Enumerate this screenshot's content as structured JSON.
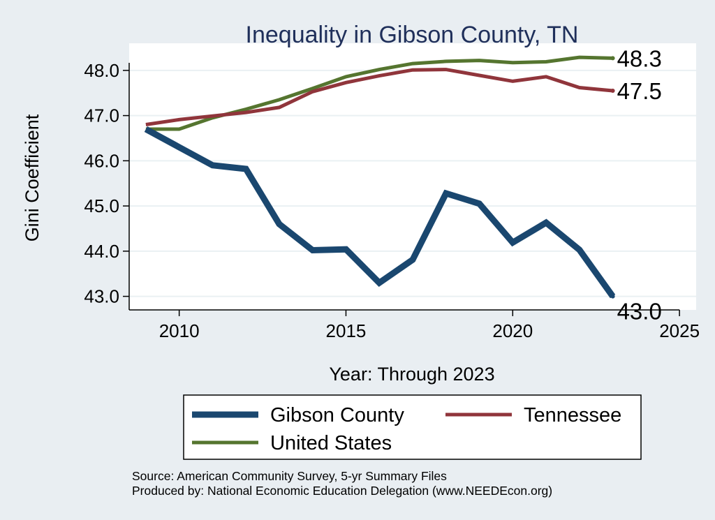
{
  "chart_data": {
    "type": "line",
    "title": "Inequality in Gibson County, TN",
    "xlabel": "Year: Through 2023",
    "ylabel": "Gini Coefficient",
    "xlim": [
      2008.5,
      2025.5
    ],
    "ylim": [
      42.7,
      48.6
    ],
    "x_ticks": [
      2010,
      2015,
      2020,
      2025
    ],
    "y_ticks": [
      43.0,
      44.0,
      45.0,
      46.0,
      47.0,
      48.0
    ],
    "x_tick_labels": [
      "2010",
      "2015",
      "2020",
      "2025"
    ],
    "y_tick_labels": [
      "43.0",
      "44.0",
      "45.0",
      "46.0",
      "47.0",
      "48.0"
    ],
    "grid": true,
    "legend_position": "bottom",
    "x": [
      2009,
      2010,
      2011,
      2012,
      2013,
      2014,
      2015,
      2016,
      2017,
      2018,
      2019,
      2020,
      2021,
      2022,
      2023
    ],
    "series": [
      {
        "name": "Gibson County",
        "color": "#1a476f",
        "values": [
          46.7,
          46.3,
          45.9,
          45.82,
          44.6,
          44.02,
          44.04,
          43.3,
          43.81,
          45.28,
          45.05,
          44.19,
          44.63,
          44.03,
          43.0
        ],
        "end_label": "43.0"
      },
      {
        "name": "Tennessee",
        "color": "#90353b",
        "values": [
          46.8,
          46.91,
          46.99,
          47.07,
          47.18,
          47.53,
          47.73,
          47.88,
          48.01,
          48.02,
          47.89,
          47.76,
          47.86,
          47.62,
          47.55
        ],
        "end_label": "47.5"
      },
      {
        "name": "United States",
        "color": "#55752f",
        "values": [
          46.7,
          46.7,
          46.95,
          47.14,
          47.35,
          47.6,
          47.86,
          48.02,
          48.15,
          48.2,
          48.22,
          48.17,
          48.19,
          48.29,
          48.27
        ],
        "end_label": "48.3"
      }
    ]
  },
  "footer": {
    "source_line": "Source: American Community Survey, 5-yr Summary Files",
    "produced_line": "Produced by: National Economic Education Delegation (www.NEEDEcon.org)"
  }
}
